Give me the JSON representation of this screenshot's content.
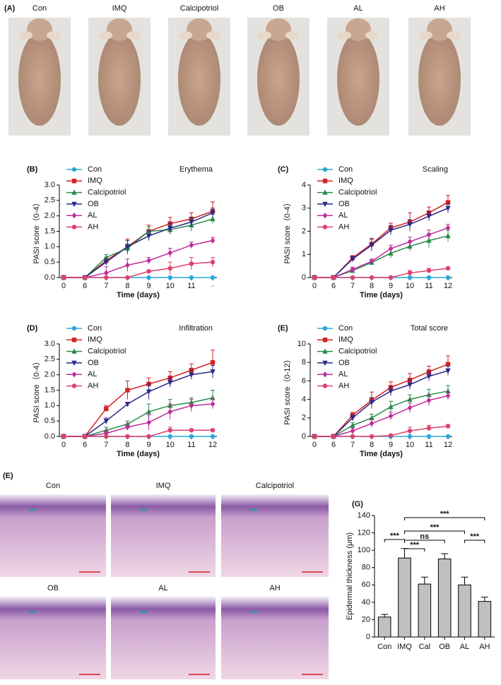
{
  "panel_a": {
    "label": "(A)",
    "groups": [
      "Con",
      "IMQ",
      "Calcipotriol",
      "OB",
      "AL",
      "AH"
    ]
  },
  "chart_data": [
    {
      "type": "line",
      "label": "(B)",
      "title": "Erythema",
      "ylabel": "PASI score（0-4）",
      "xlabel": "Time (days)",
      "categories": [
        "0",
        "6",
        "7",
        "8",
        "9",
        "10",
        "11",
        "·"
      ],
      "ylim": [
        0,
        3
      ],
      "yticks": [
        {
          "value": 0,
          "label": "0.0"
        },
        0.5,
        {
          "value": 1,
          "label": "1.0"
        },
        1.5,
        {
          "value": 2,
          "label": "2.0"
        },
        2.5,
        {
          "value": 3,
          "label": "3.0"
        }
      ],
      "series": [
        {
          "name": "Con",
          "color": "#2aa8d8",
          "marker": "circle",
          "values": [
            0,
            0,
            0,
            0,
            0,
            0,
            0,
            0
          ],
          "errors": [
            0,
            0,
            0,
            0,
            0,
            0,
            0,
            0
          ]
        },
        {
          "name": "IMQ",
          "color": "#d62020",
          "marker": "square",
          "values": [
            0,
            0,
            0.55,
            1.0,
            1.5,
            1.75,
            1.9,
            2.15
          ],
          "errors": [
            0,
            0,
            0.1,
            0.25,
            0.2,
            0.2,
            0.2,
            0.3
          ]
        },
        {
          "name": "Calcipotriol",
          "color": "#2a8a4a",
          "marker": "triangle",
          "values": [
            0,
            0,
            0.65,
            0.95,
            1.5,
            1.55,
            1.7,
            1.9
          ],
          "errors": [
            0,
            0,
            0.1,
            0.15,
            0.15,
            0.15,
            0.2,
            0.15
          ]
        },
        {
          "name": "OB",
          "color": "#2a2a8a",
          "marker": "triangle-down",
          "values": [
            0,
            0,
            0.5,
            1.0,
            1.35,
            1.6,
            1.8,
            2.1
          ],
          "errors": [
            0,
            0,
            0.1,
            0.2,
            0.15,
            0.15,
            0.15,
            0.15
          ]
        },
        {
          "name": "AL",
          "color": "#c02a9a",
          "marker": "diamond",
          "values": [
            0,
            0,
            0.15,
            0.4,
            0.55,
            0.8,
            1.05,
            1.2
          ],
          "errors": [
            0,
            0,
            0.2,
            0.2,
            0.1,
            0.15,
            0.1,
            0.1
          ]
        },
        {
          "name": "AH",
          "color": "#e0406a",
          "marker": "circle",
          "values": [
            0,
            0,
            0,
            0,
            0.2,
            0.3,
            0.45,
            0.5
          ],
          "errors": [
            0,
            0,
            0,
            0,
            0.05,
            0.2,
            0.2,
            0.15
          ]
        }
      ]
    },
    {
      "type": "line",
      "label": "(C)",
      "title": "Scaling",
      "ylabel": "PASI score（0-4）",
      "xlabel": "Time (days)",
      "categories": [
        "0",
        "6",
        "7",
        "8",
        "9",
        "10",
        "11",
        "12"
      ],
      "ylim": [
        0,
        4
      ],
      "yticks": [
        0,
        1,
        2,
        3,
        4
      ],
      "series": [
        {
          "name": "Con",
          "color": "#2aa8d8",
          "marker": "circle",
          "values": [
            0,
            0,
            0,
            0,
            0,
            0,
            0,
            0
          ],
          "errors": [
            0,
            0,
            0,
            0,
            0,
            0,
            0,
            0
          ]
        },
        {
          "name": "IMQ",
          "color": "#d62020",
          "marker": "square",
          "values": [
            0,
            0,
            0.85,
            1.45,
            2.15,
            2.4,
            2.8,
            3.25
          ],
          "errors": [
            0,
            0,
            0.1,
            0.25,
            0.2,
            0.4,
            0.25,
            0.3
          ]
        },
        {
          "name": "Calcipotriol",
          "color": "#2a8a4a",
          "marker": "triangle",
          "values": [
            0,
            0,
            0.3,
            0.65,
            1.05,
            1.35,
            1.6,
            1.8
          ],
          "errors": [
            0,
            0,
            0.1,
            0.1,
            0.2,
            0.2,
            0.3,
            0.25
          ]
        },
        {
          "name": "OB",
          "color": "#2a2a8a",
          "marker": "triangle-down",
          "values": [
            0,
            0,
            0.8,
            1.4,
            2.05,
            2.3,
            2.65,
            3.0
          ],
          "errors": [
            0,
            0,
            0.1,
            0.25,
            0.2,
            0.2,
            0.2,
            0.2
          ]
        },
        {
          "name": "AL",
          "color": "#c02a9a",
          "marker": "diamond",
          "values": [
            0,
            0,
            0.35,
            0.7,
            1.25,
            1.55,
            1.85,
            2.15
          ],
          "errors": [
            0,
            0,
            0.1,
            0.1,
            0.15,
            0.2,
            0.2,
            0.15
          ]
        },
        {
          "name": "AH",
          "color": "#e0406a",
          "marker": "circle",
          "values": [
            0,
            0,
            0,
            0,
            0,
            0.2,
            0.3,
            0.4
          ],
          "errors": [
            0,
            0,
            0,
            0,
            0,
            0.1,
            0.1,
            0.05
          ]
        }
      ]
    },
    {
      "type": "line",
      "label": "(D)",
      "title": "Infiltration",
      "ylabel": "PASI score（0-4）",
      "xlabel": "Time (days)",
      "categories": [
        "0",
        "6",
        "7",
        "8",
        "9",
        "10",
        "11",
        "12"
      ],
      "ylim": [
        0,
        3
      ],
      "yticks": [
        {
          "value": 0,
          "label": "0.0"
        },
        0.5,
        {
          "value": 1,
          "label": "1.0"
        },
        1.5,
        {
          "value": 2,
          "label": "2.0"
        },
        2.5,
        {
          "value": 3,
          "label": "3.0"
        }
      ],
      "series": [
        {
          "name": "Con",
          "color": "#2aa8d8",
          "marker": "circle",
          "values": [
            0,
            0,
            0,
            0,
            0,
            0,
            0,
            0
          ],
          "errors": [
            0,
            0,
            0,
            0,
            0,
            0,
            0,
            0
          ]
        },
        {
          "name": "IMQ",
          "color": "#d62020",
          "marker": "square",
          "values": [
            0,
            0,
            0.9,
            1.5,
            1.7,
            1.9,
            2.15,
            2.4
          ],
          "errors": [
            0,
            0,
            0.1,
            0.3,
            0.2,
            0.2,
            0.2,
            0.4
          ]
        },
        {
          "name": "Calcipotriol",
          "color": "#2a8a4a",
          "marker": "triangle",
          "values": [
            0,
            0,
            0.2,
            0.4,
            0.8,
            1.0,
            1.1,
            1.25
          ],
          "errors": [
            0,
            0,
            0.1,
            0.1,
            0.25,
            0.2,
            0.15,
            0.25
          ]
        },
        {
          "name": "OB",
          "color": "#2a2a8a",
          "marker": "triangle-down",
          "values": [
            0,
            0,
            0.5,
            1.05,
            1.45,
            1.75,
            2.0,
            2.1
          ],
          "errors": [
            0,
            0,
            0.1,
            0.05,
            0.25,
            0.15,
            0.15,
            0.2
          ]
        },
        {
          "name": "AL",
          "color": "#c02a9a",
          "marker": "diamond",
          "values": [
            0,
            0,
            0.1,
            0.3,
            0.45,
            0.8,
            1.0,
            1.05
          ],
          "errors": [
            0,
            0,
            0.1,
            0.1,
            0.25,
            0.25,
            0.2,
            0.15
          ]
        },
        {
          "name": "AH",
          "color": "#e0406a",
          "marker": "circle",
          "values": [
            0,
            0,
            0,
            0,
            0,
            0.2,
            0.2,
            0.2
          ],
          "errors": [
            0,
            0,
            0,
            0,
            0,
            0.1,
            0.05,
            0.05
          ]
        }
      ]
    },
    {
      "type": "line",
      "label": "(E)",
      "title": "Total score",
      "ylabel": "PASI score（0-12）",
      "xlabel": "Time (days)",
      "categories": [
        "0",
        "6",
        "7",
        "8",
        "9",
        "10",
        "11",
        "12"
      ],
      "ylim": [
        0,
        10
      ],
      "yticks": [
        0,
        2,
        4,
        6,
        8,
        10
      ],
      "series": [
        {
          "name": "Con",
          "color": "#2aa8d8",
          "marker": "circle",
          "values": [
            0,
            0,
            0,
            0,
            0,
            0,
            0,
            0
          ],
          "errors": [
            0,
            0,
            0,
            0,
            0,
            0,
            0,
            0
          ]
        },
        {
          "name": "IMQ",
          "color": "#d62020",
          "marker": "square",
          "values": [
            0,
            0,
            2.3,
            3.9,
            5.3,
            6.1,
            7.0,
            7.8
          ],
          "errors": [
            0,
            0,
            0.3,
            0.9,
            0.6,
            0.7,
            0.6,
            0.9
          ]
        },
        {
          "name": "Calcipotriol",
          "color": "#2a8a4a",
          "marker": "triangle",
          "values": [
            0,
            0,
            1.2,
            2.0,
            3.2,
            4.0,
            4.5,
            4.9
          ],
          "errors": [
            0,
            0,
            0.3,
            0.4,
            0.6,
            0.5,
            0.6,
            0.6
          ]
        },
        {
          "name": "OB",
          "color": "#2a2a8a",
          "marker": "triangle-down",
          "values": [
            0,
            0,
            2.0,
            3.7,
            4.9,
            5.6,
            6.5,
            7.1
          ],
          "errors": [
            0,
            0,
            0.3,
            0.5,
            0.5,
            0.5,
            0.5,
            0.5
          ]
        },
        {
          "name": "AL",
          "color": "#c02a9a",
          "marker": "diamond",
          "values": [
            0,
            0,
            0.6,
            1.4,
            2.2,
            3.1,
            3.9,
            4.4
          ],
          "errors": [
            0,
            0,
            0.3,
            0.4,
            0.4,
            0.5,
            0.6,
            0.4
          ]
        },
        {
          "name": "AH",
          "color": "#e0406a",
          "marker": "circle",
          "values": [
            0,
            0,
            0,
            0,
            0.1,
            0.6,
            0.9,
            1.1
          ],
          "errors": [
            0,
            0,
            0,
            0,
            0.1,
            0.4,
            0.3,
            0.2
          ]
        }
      ]
    },
    {
      "type": "bar",
      "label": "(G)",
      "ylabel": "Epidermal thickness (μm)",
      "categories": [
        "Con",
        "IMQ",
        "Cal",
        "OB",
        "AL",
        "AH"
      ],
      "values": [
        23,
        91,
        61,
        90,
        60,
        41
      ],
      "errors": [
        3,
        11,
        8,
        6,
        9,
        5
      ],
      "color": "#c0c0c0",
      "ylim": [
        0,
        140
      ],
      "yticks": [
        0,
        20,
        40,
        60,
        80,
        100,
        120,
        140
      ],
      "comparisons": [
        {
          "pair": [
            0,
            1
          ],
          "label": "***"
        },
        {
          "pair": [
            1,
            5
          ],
          "label": "***"
        },
        {
          "pair": [
            1,
            4
          ],
          "label": "***"
        },
        {
          "pair": [
            1,
            3
          ],
          "label": "ns"
        },
        {
          "pair": [
            1,
            2
          ],
          "label": "***"
        },
        {
          "pair": [
            4,
            5
          ],
          "label": "***"
        }
      ]
    }
  ],
  "panel_histology": {
    "label": "(E)",
    "groups": [
      "Con",
      "IMQ",
      "Calcipotriol",
      "OB",
      "AL",
      "AH"
    ]
  }
}
